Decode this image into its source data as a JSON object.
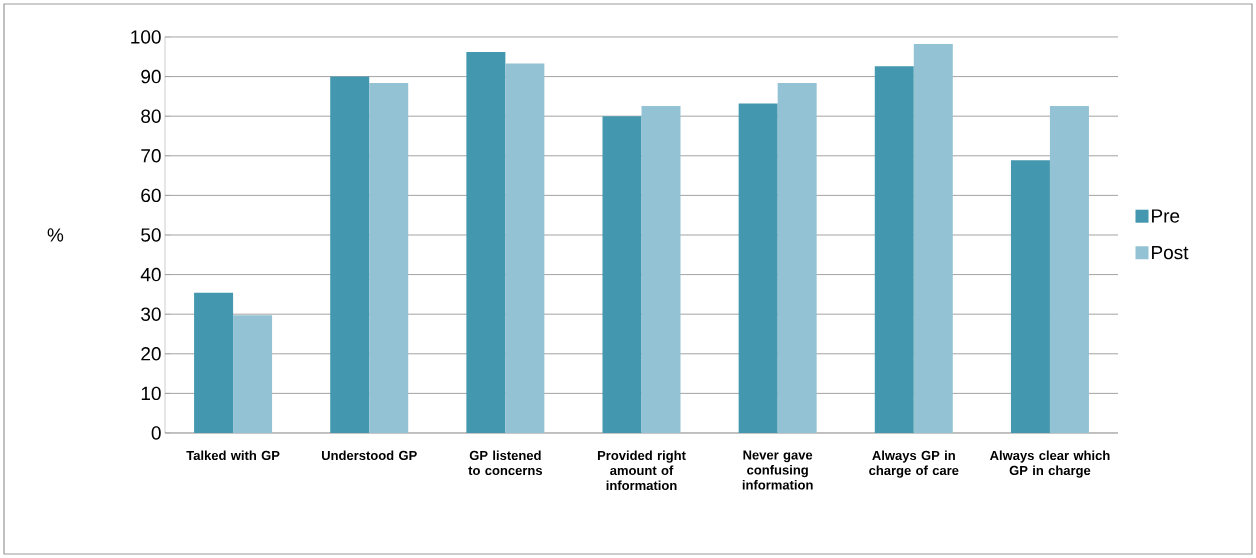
{
  "chart_data": {
    "type": "bar",
    "ylabel": "%",
    "categories": [
      "Talked with GP",
      "Understood GP",
      "GP listened to concerns",
      "Provided right amount of information",
      "Never gave confusing information",
      "Always GP in charge of care",
      "Always clear which GP in charge"
    ],
    "series": [
      {
        "name": "Pre",
        "color": "#4397ae",
        "values": [
          35.4,
          90,
          96.2,
          80,
          83.2,
          92.6,
          68.9
        ]
      },
      {
        "name": "Post",
        "color": "#93c2d4",
        "values": [
          29.7,
          88.4,
          93.3,
          82.6,
          88.4,
          98.2,
          82.6
        ]
      }
    ],
    "ylim": [
      0,
      100
    ],
    "yticks": [
      0,
      10,
      20,
      30,
      40,
      50,
      60,
      70,
      80,
      90,
      100
    ],
    "grid": "y",
    "legend": "right"
  }
}
